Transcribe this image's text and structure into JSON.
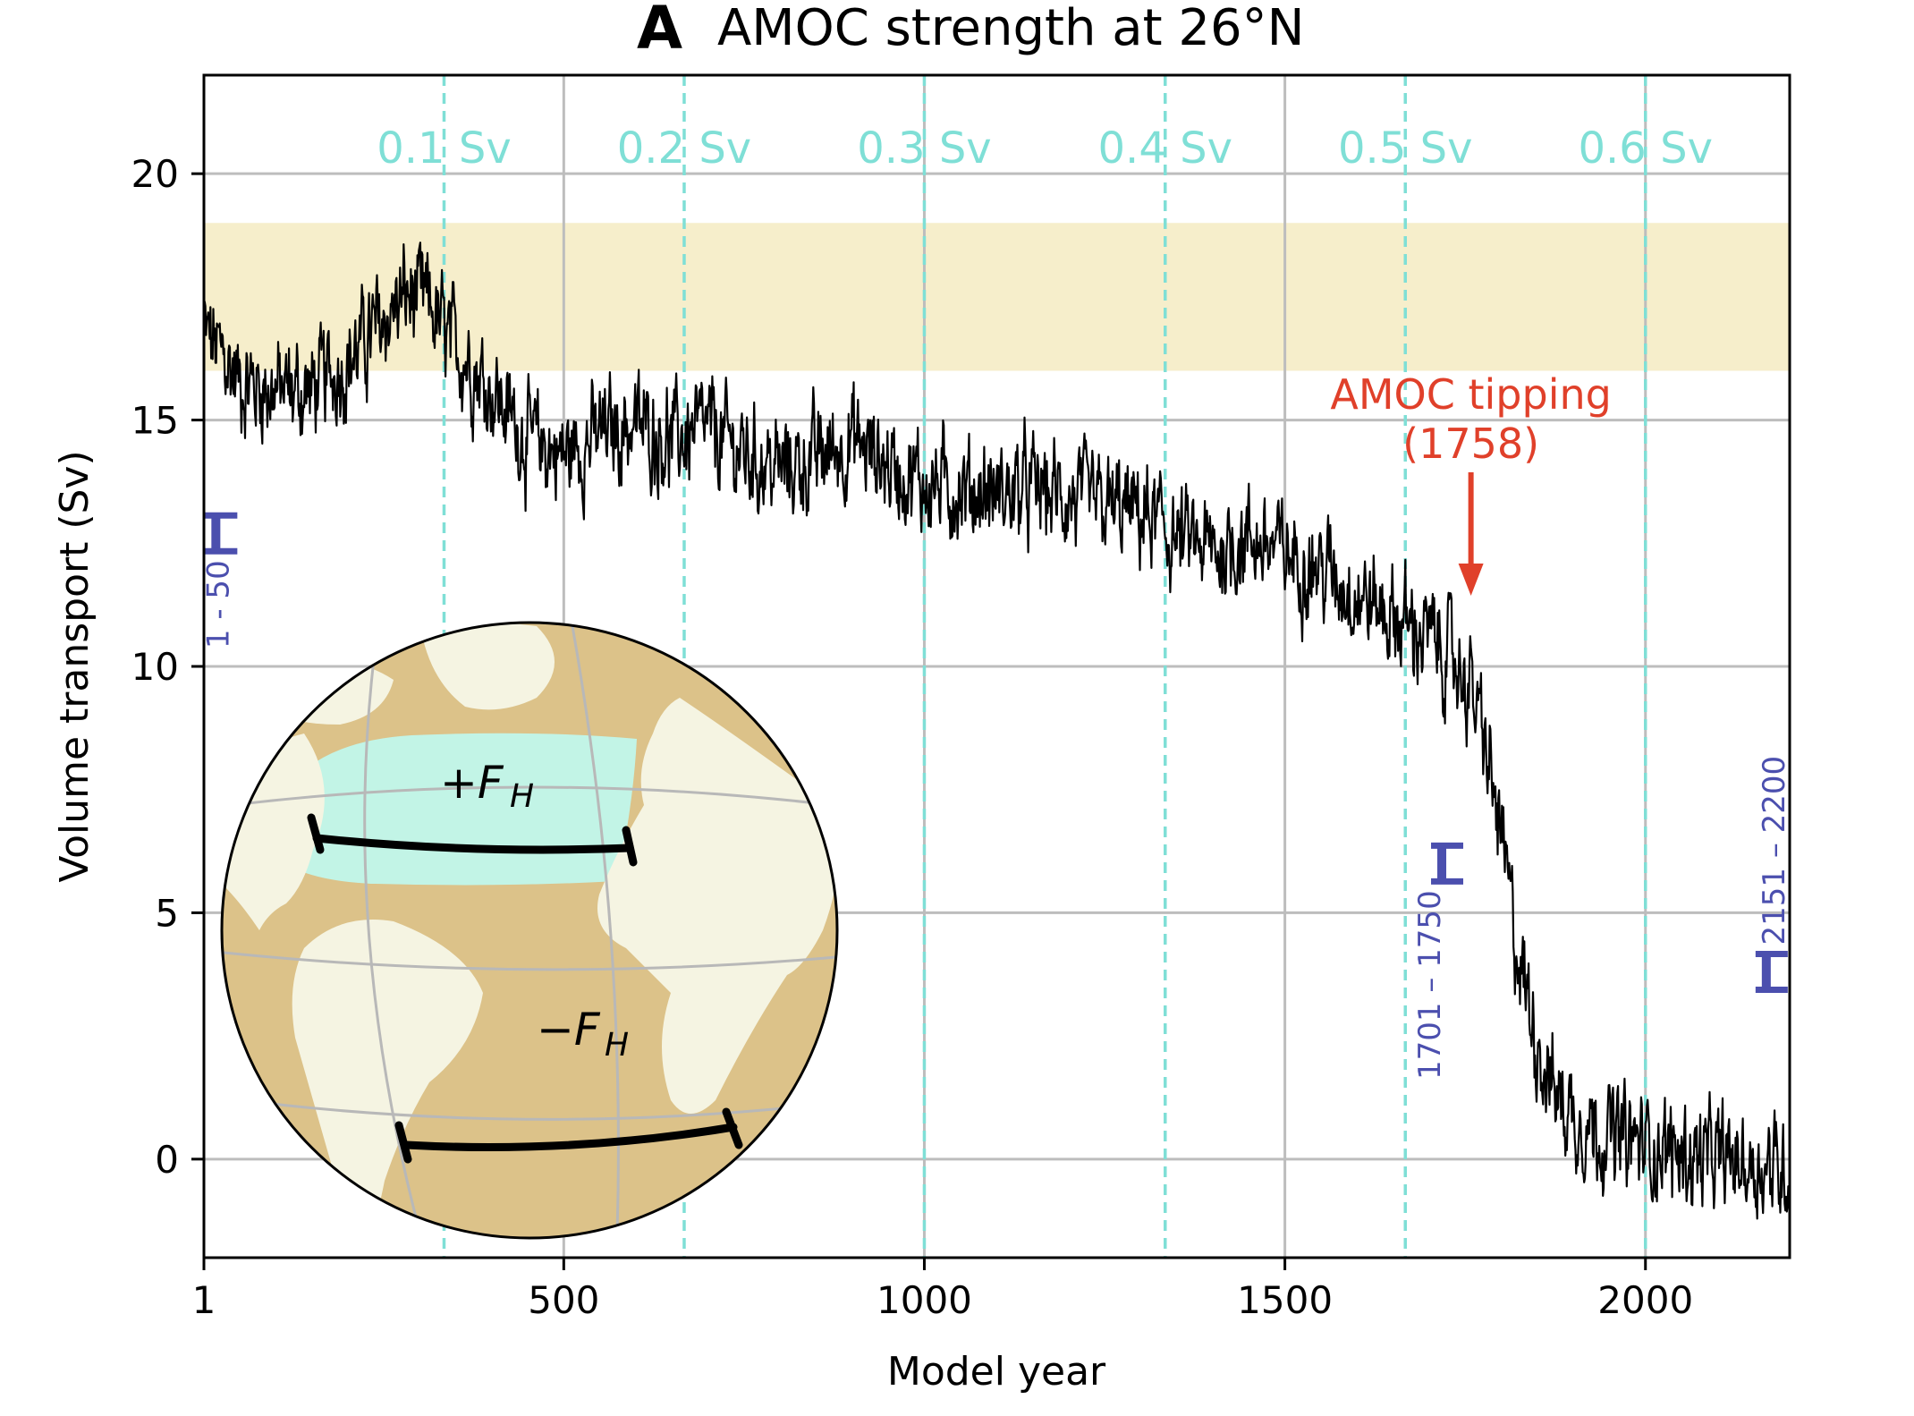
{
  "panel_letter": "A",
  "colors": {
    "series": "#000000",
    "observed_band": "#f6eecb",
    "sv_lines": "#7fdfd6",
    "grid": "#bdbdbd",
    "period_markers": "#4b4fae",
    "tipping": "#e0402a",
    "globe_ocean": "#dcc289",
    "globe_land": "#f5f4e2",
    "globe_fh_band": "#c2f4e6"
  },
  "chart_data": {
    "type": "line",
    "title": "AMOC strength at 26°N",
    "xlabel": "Model year",
    "ylabel": "Volume transport (Sv)",
    "xlim": [
      1,
      2200
    ],
    "ylim": [
      -2,
      22
    ],
    "xticks": [
      1,
      500,
      1000,
      1500,
      2000
    ],
    "yticks": [
      0,
      5,
      10,
      15,
      20
    ],
    "grid": true,
    "observed_band": [
      16,
      19
    ],
    "freshwater_forcing_lines": [
      {
        "x": 334,
        "label": "0.1 Sv"
      },
      {
        "x": 667,
        "label": "0.2 Sv"
      },
      {
        "x": 1000,
        "label": "0.3 Sv"
      },
      {
        "x": 1334,
        "label": "0.4 Sv"
      },
      {
        "x": 1667,
        "label": "0.5 Sv"
      },
      {
        "x": 2000,
        "label": "0.6 Sv"
      }
    ],
    "averaging_periods": [
      {
        "label": "1 - 50",
        "x": 25,
        "mean": 12.7
      },
      {
        "label": "1701 – 1750",
        "x": 1725,
        "mean": 6.0
      },
      {
        "label": "2151 – 2200",
        "x": 2175,
        "mean": 3.8
      }
    ],
    "annotation": {
      "text": "AMOC tipping",
      "year_text": "(1758)",
      "x": 1758,
      "y": 11.3
    },
    "series": [
      {
        "x": [
          1,
          50,
          100,
          150,
          200,
          250,
          280,
          310,
          340,
          370,
          400,
          450,
          500,
          550,
          600,
          650,
          700,
          750,
          800,
          850,
          900,
          950,
          1000,
          1050,
          1100,
          1150,
          1200,
          1250,
          1300,
          1350,
          1400,
          1450,
          1500,
          1550,
          1600,
          1650,
          1700,
          1740,
          1760,
          1780,
          1800,
          1820,
          1840,
          1860,
          1880,
          1900,
          1950,
          2000,
          2050,
          2100,
          2150,
          2200
        ],
        "values": [
          16.8,
          15.8,
          15.6,
          15.6,
          16.2,
          17.0,
          17.5,
          17.4,
          16.6,
          16.2,
          15.6,
          14.6,
          14.3,
          14.7,
          14.9,
          14.6,
          14.8,
          14.3,
          14.0,
          14.2,
          14.6,
          14.1,
          13.7,
          13.6,
          13.5,
          13.6,
          13.4,
          13.2,
          13.1,
          12.6,
          12.3,
          12.6,
          12.3,
          12.0,
          11.5,
          11.0,
          10.6,
          10.0,
          9.5,
          8.2,
          6.5,
          4.4,
          3.0,
          1.9,
          1.2,
          0.9,
          0.5,
          0.3,
          0.1,
          0.0,
          -0.1,
          -0.2
        ]
      }
    ]
  }
}
